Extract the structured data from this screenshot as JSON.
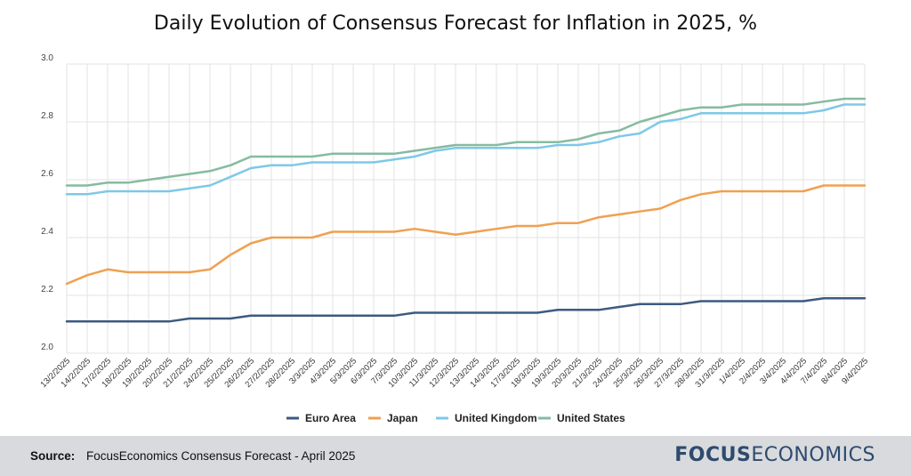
{
  "title": "Daily Evolution of Consensus Forecast for Inflation in 2025, %",
  "footer": {
    "source_label": "Source:",
    "source_text": "FocusEconomics Consensus Forecast - April 2025",
    "logo_bold": "FOCUS",
    "logo_light": "ECONOMICS"
  },
  "chart_data": {
    "type": "line",
    "title": "Daily Evolution of Consensus Forecast for Inflation in 2025, %",
    "xlabel": "",
    "ylabel": "",
    "ylim": [
      2.0,
      3.0
    ],
    "yticks": [
      "2.0",
      "2.2",
      "2.4",
      "2.6",
      "2.8",
      "3.0"
    ],
    "grid": true,
    "legend_position": "bottom",
    "categories": [
      "13/2/2025",
      "14/2/2025",
      "17/2/2025",
      "18/2/2025",
      "19/2/2025",
      "20/2/2025",
      "21/2/2025",
      "24/2/2025",
      "25/2/2025",
      "26/2/2025",
      "27/2/2025",
      "28/2/2025",
      "3/3/2025",
      "4/3/2025",
      "5/3/2025",
      "6/3/2025",
      "7/3/2025",
      "10/3/2025",
      "11/3/2025",
      "12/3/2025",
      "13/3/2025",
      "14/3/2025",
      "17/3/2025",
      "18/3/2025",
      "19/3/2025",
      "20/3/2025",
      "21/3/2025",
      "24/3/2025",
      "25/3/2025",
      "26/3/2025",
      "27/3/2025",
      "28/3/2025",
      "31/3/2025",
      "1/4/2025",
      "2/4/2025",
      "3/4/2025",
      "4/4/2025",
      "7/4/2025",
      "8/4/2025",
      "9/4/2025"
    ],
    "series": [
      {
        "name": "Euro Area",
        "color": "#3d5a80",
        "values": [
          2.11,
          2.11,
          2.11,
          2.11,
          2.11,
          2.11,
          2.12,
          2.12,
          2.12,
          2.13,
          2.13,
          2.13,
          2.13,
          2.13,
          2.13,
          2.13,
          2.13,
          2.14,
          2.14,
          2.14,
          2.14,
          2.14,
          2.14,
          2.14,
          2.15,
          2.15,
          2.15,
          2.16,
          2.17,
          2.17,
          2.17,
          2.18,
          2.18,
          2.18,
          2.18,
          2.18,
          2.18,
          2.19,
          2.19,
          2.19
        ]
      },
      {
        "name": "Japan",
        "color": "#f0a050",
        "values": [
          2.24,
          2.27,
          2.29,
          2.28,
          2.28,
          2.28,
          2.28,
          2.29,
          2.34,
          2.38,
          2.4,
          2.4,
          2.4,
          2.42,
          2.42,
          2.42,
          2.42,
          2.43,
          2.42,
          2.41,
          2.42,
          2.43,
          2.44,
          2.44,
          2.45,
          2.45,
          2.47,
          2.48,
          2.49,
          2.5,
          2.53,
          2.55,
          2.56,
          2.56,
          2.56,
          2.56,
          2.56,
          2.58,
          2.58,
          2.58
        ]
      },
      {
        "name": "United Kingdom",
        "color": "#7ec8e8",
        "values": [
          2.55,
          2.55,
          2.56,
          2.56,
          2.56,
          2.56,
          2.57,
          2.58,
          2.61,
          2.64,
          2.65,
          2.65,
          2.66,
          2.66,
          2.66,
          2.66,
          2.67,
          2.68,
          2.7,
          2.71,
          2.71,
          2.71,
          2.71,
          2.71,
          2.72,
          2.72,
          2.73,
          2.75,
          2.76,
          2.8,
          2.81,
          2.83,
          2.83,
          2.83,
          2.83,
          2.83,
          2.83,
          2.84,
          2.86,
          2.86
        ]
      },
      {
        "name": "United States",
        "color": "#86bba1",
        "values": [
          2.58,
          2.58,
          2.59,
          2.59,
          2.6,
          2.61,
          2.62,
          2.63,
          2.65,
          2.68,
          2.68,
          2.68,
          2.68,
          2.69,
          2.69,
          2.69,
          2.69,
          2.7,
          2.71,
          2.72,
          2.72,
          2.72,
          2.73,
          2.73,
          2.73,
          2.74,
          2.76,
          2.77,
          2.8,
          2.82,
          2.84,
          2.85,
          2.85,
          2.86,
          2.86,
          2.86,
          2.86,
          2.87,
          2.88,
          2.88
        ]
      }
    ]
  }
}
